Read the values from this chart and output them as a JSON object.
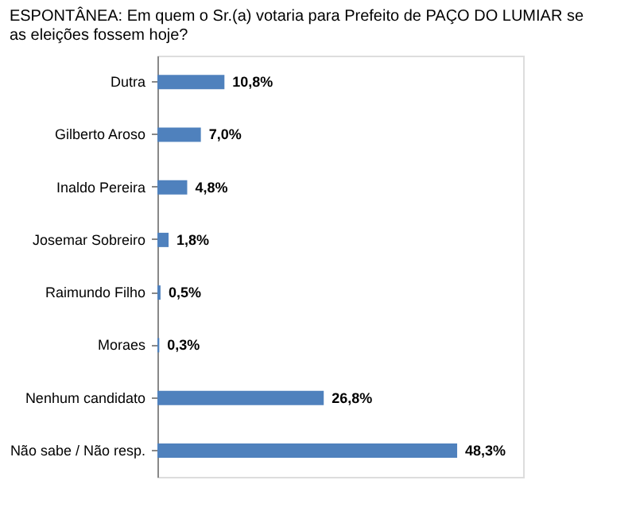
{
  "chart_data": {
    "type": "bar",
    "orientation": "horizontal",
    "title": "ESPONTÂNEA: Em quem o Sr.(a)  votaria para Prefeito de PAÇO DO LUMIAR se as eleições fossem hoje?",
    "categories": [
      "Dutra",
      "Gilberto Aroso",
      "Inaldo Pereira",
      "Josemar Sobreiro",
      "Raimundo Filho",
      "Moraes",
      "Nenhum candidato",
      "Não sabe / Não resp."
    ],
    "values": [
      10.8,
      7.0,
      4.8,
      1.8,
      0.5,
      0.3,
      26.8,
      48.3
    ],
    "value_labels": [
      "10,8%",
      "7,0%",
      "4,8%",
      "1,8%",
      "0,5%",
      "0,3%",
      "26,8%",
      "48,3%"
    ],
    "color": "#4f81bd",
    "grid": false
  }
}
